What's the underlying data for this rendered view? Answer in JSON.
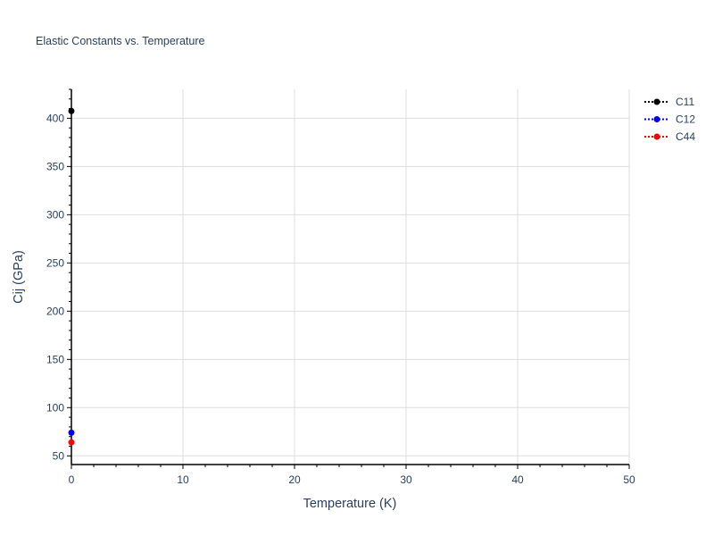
{
  "chart_data": {
    "type": "scatter",
    "title": "Elastic Constants vs. Temperature",
    "xlabel": "Temperature (K)",
    "ylabel": "Cij (GPa)",
    "xlim": [
      0,
      50
    ],
    "ylim": [
      41,
      430
    ],
    "xticks": [
      0,
      10,
      20,
      30,
      40,
      50
    ],
    "yticks": [
      50,
      100,
      150,
      200,
      250,
      300,
      350,
      400
    ],
    "grid": true,
    "legend_position": "top-right",
    "series": [
      {
        "name": "C11",
        "color": "#000000",
        "line": "dotted",
        "x": [
          0
        ],
        "y": [
          407.5
        ]
      },
      {
        "name": "C12",
        "color": "#0000ff",
        "line": "dotted",
        "x": [
          0
        ],
        "y": [
          74
        ]
      },
      {
        "name": "C44",
        "color": "#ff0000",
        "line": "dotted",
        "x": [
          0
        ],
        "y": [
          64
        ]
      }
    ]
  }
}
